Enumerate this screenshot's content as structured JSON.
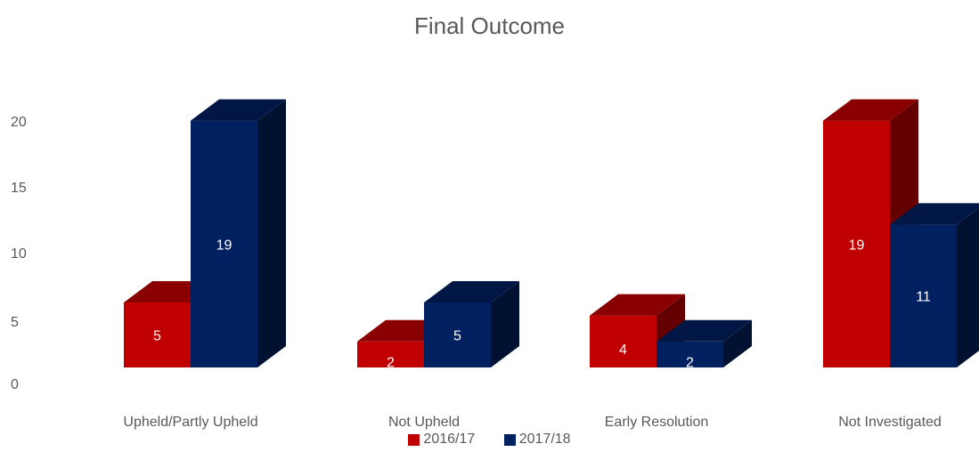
{
  "chart_data": {
    "type": "bar",
    "title": "Final Outcome",
    "categories": [
      "Upheld/Partly Upheld",
      "Not Upheld",
      "Early Resolution",
      "Not Investigated"
    ],
    "series": [
      {
        "name": "2016/17",
        "values": [
          5,
          2,
          4,
          19
        ],
        "color": "#c00000"
      },
      {
        "name": "2017/18",
        "values": [
          19,
          5,
          2,
          11
        ],
        "color": "#002060"
      }
    ],
    "yticks": [
      0,
      5,
      10,
      15,
      20
    ],
    "ylim": [
      0,
      20
    ],
    "grid": false,
    "legend_position": "bottom",
    "three_d": true
  }
}
